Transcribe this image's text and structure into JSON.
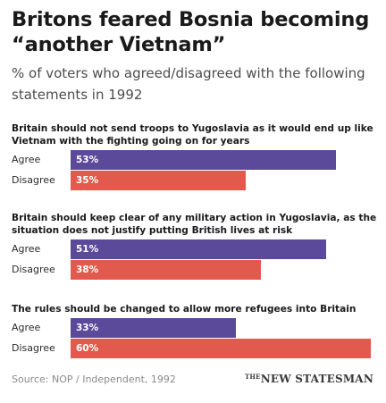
{
  "title": "Britons feared Bosnia becoming “another Vietnam”",
  "subtitle": "% of voters who agreed/disagreed with the following statements in 1992",
  "source": "Source: NOP / Independent, 1992",
  "logo": "NEW STATESMAN",
  "colors": {
    "agree": "#5b4a9a",
    "disagree": "#e25a4d"
  },
  "chart_data": {
    "type": "bar",
    "orientation": "horizontal",
    "xlim": [
      0,
      60
    ],
    "series": [
      {
        "name": "Agree"
      },
      {
        "name": "Disagree"
      }
    ],
    "questions": [
      {
        "text": "Britain should not send troops to Yugoslavia as it would end up like Vietnam with the fighting going on for years",
        "bars": [
          {
            "label": "Agree",
            "value": 53,
            "value_label": "53%"
          },
          {
            "label": "Disagree",
            "value": 35,
            "value_label": "35%"
          }
        ]
      },
      {
        "text": "Britain should keep clear of any military action in Yugoslavia, as the situation does not justify putting British lives at risk",
        "bars": [
          {
            "label": "Agree",
            "value": 51,
            "value_label": "51%"
          },
          {
            "label": "Disagree",
            "value": 38,
            "value_label": "38%"
          }
        ]
      },
      {
        "text": "The rules should be changed to allow more refugees into Britain",
        "bars": [
          {
            "label": "Agree",
            "value": 33,
            "value_label": "33%"
          },
          {
            "label": "Disagree",
            "value": 60,
            "value_label": "60%"
          }
        ]
      }
    ]
  }
}
